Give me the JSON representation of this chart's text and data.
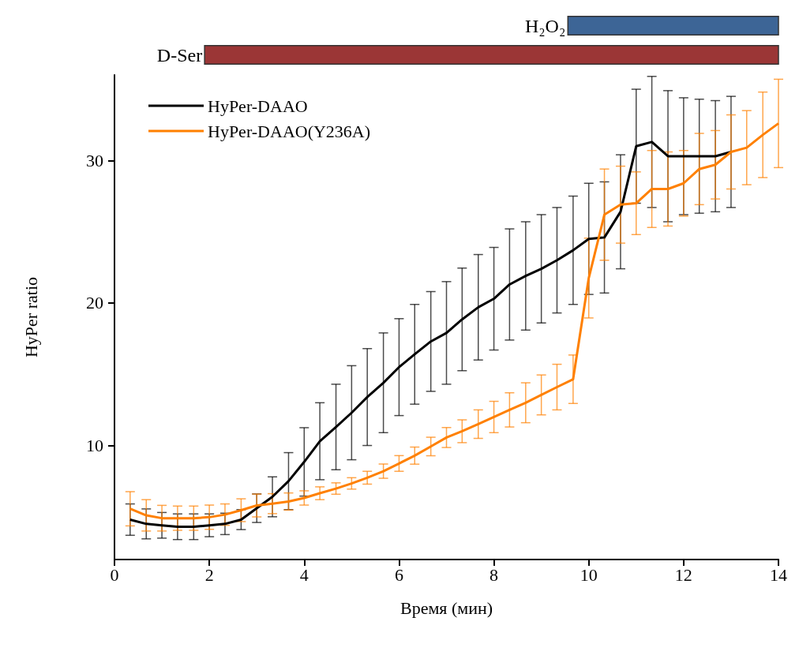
{
  "chart_data": [
    {
      "type": "bar",
      "orientation": "horizontal",
      "categories": [
        "H₂O₂",
        "D-Ser"
      ],
      "base": [
        9.56,
        1.9
      ],
      "values": [
        4.44,
        12.1
      ],
      "colors": [
        "#3d6596",
        "#9b3636"
      ],
      "xlim": [
        0,
        14
      ],
      "tick_labels": false
    },
    {
      "type": "line",
      "xlabel": "Время (мин)",
      "ylabel": "HyPer ratio",
      "xlim": [
        0,
        14
      ],
      "xticks": [
        0,
        2,
        4,
        6,
        8,
        10,
        12,
        14
      ],
      "ylim": [
        2,
        36
      ],
      "yticks": [
        10,
        20,
        30
      ],
      "grid": false,
      "legend": "top left",
      "marker": "none",
      "line_style": "solid",
      "series": [
        {
          "name": "HyPer-DAAO",
          "color": "#000000",
          "x": [
            0.33,
            0.67,
            1,
            1.33,
            1.67,
            2,
            2.33,
            2.67,
            3,
            3.33,
            3.67,
            4,
            4.33,
            4.67,
            5,
            5.33,
            5.67,
            6,
            6.33,
            6.67,
            7,
            7.33,
            7.67,
            8,
            8.33,
            8.67,
            9,
            9.33,
            9.67,
            10,
            10.33,
            10.67,
            11,
            11.33,
            11.67,
            12,
            12.33,
            12.67,
            13
          ],
          "values": [
            4.8,
            4.5,
            4.4,
            4.3,
            4.3,
            4.4,
            4.5,
            4.8,
            5.6,
            6.4,
            7.5,
            8.85,
            10.3,
            11.3,
            12.3,
            13.4,
            14.4,
            15.5,
            16.4,
            17.3,
            17.9,
            18.85,
            19.7,
            20.3,
            21.3,
            21.9,
            22.4,
            23.0,
            23.7,
            24.5,
            24.6,
            26.4,
            31.0,
            31.3,
            30.3,
            30.3,
            30.3,
            30.3,
            30.6
          ],
          "errors": [
            1.1,
            1.05,
            0.9,
            0.9,
            0.9,
            0.8,
            0.75,
            0.7,
            1.0,
            1.4,
            2.0,
            2.4,
            2.7,
            3.0,
            3.3,
            3.4,
            3.5,
            3.4,
            3.5,
            3.5,
            3.6,
            3.6,
            3.7,
            3.6,
            3.9,
            3.8,
            3.8,
            3.7,
            3.8,
            3.9,
            3.9,
            4.0,
            4.0,
            4.6,
            4.6,
            4.1,
            4.0,
            3.9,
            3.9
          ]
        },
        {
          "name": "HyPer-DAAO(Y236A)",
          "color": "#ff8000",
          "x": [
            0.33,
            0.67,
            1,
            1.33,
            1.67,
            2,
            2.33,
            2.67,
            3,
            3.33,
            3.67,
            4,
            4.33,
            4.67,
            5,
            5.33,
            5.67,
            6,
            6.33,
            6.67,
            7,
            7.33,
            7.67,
            8,
            8.33,
            8.67,
            9,
            9.33,
            9.67,
            10,
            10.33,
            10.67,
            11,
            11.33,
            11.67,
            12,
            12.33,
            12.67,
            13,
            13.33,
            13.67,
            14
          ],
          "values": [
            5.56,
            5.1,
            4.9,
            4.9,
            4.9,
            4.97,
            5.15,
            5.46,
            5.79,
            5.92,
            6.07,
            6.32,
            6.65,
            6.98,
            7.34,
            7.74,
            8.2,
            8.74,
            9.29,
            9.93,
            10.56,
            11.0,
            11.5,
            12.0,
            12.5,
            13.0,
            13.55,
            14.1,
            14.65,
            21.75,
            26.2,
            26.9,
            27.0,
            28.0,
            28.0,
            28.4,
            29.4,
            29.7,
            30.6,
            30.9,
            31.8,
            32.6
          ],
          "errors": [
            1.2,
            1.1,
            0.9,
            0.85,
            0.85,
            0.85,
            0.75,
            0.8,
            0.8,
            0.7,
            0.6,
            0.5,
            0.45,
            0.4,
            0.4,
            0.45,
            0.5,
            0.55,
            0.6,
            0.65,
            0.7,
            0.8,
            1.0,
            1.1,
            1.2,
            1.4,
            1.4,
            1.6,
            1.7,
            2.8,
            3.2,
            2.7,
            2.2,
            2.7,
            2.6,
            2.3,
            2.5,
            2.4,
            2.6,
            2.6,
            3.0,
            3.1
          ]
        }
      ]
    }
  ]
}
